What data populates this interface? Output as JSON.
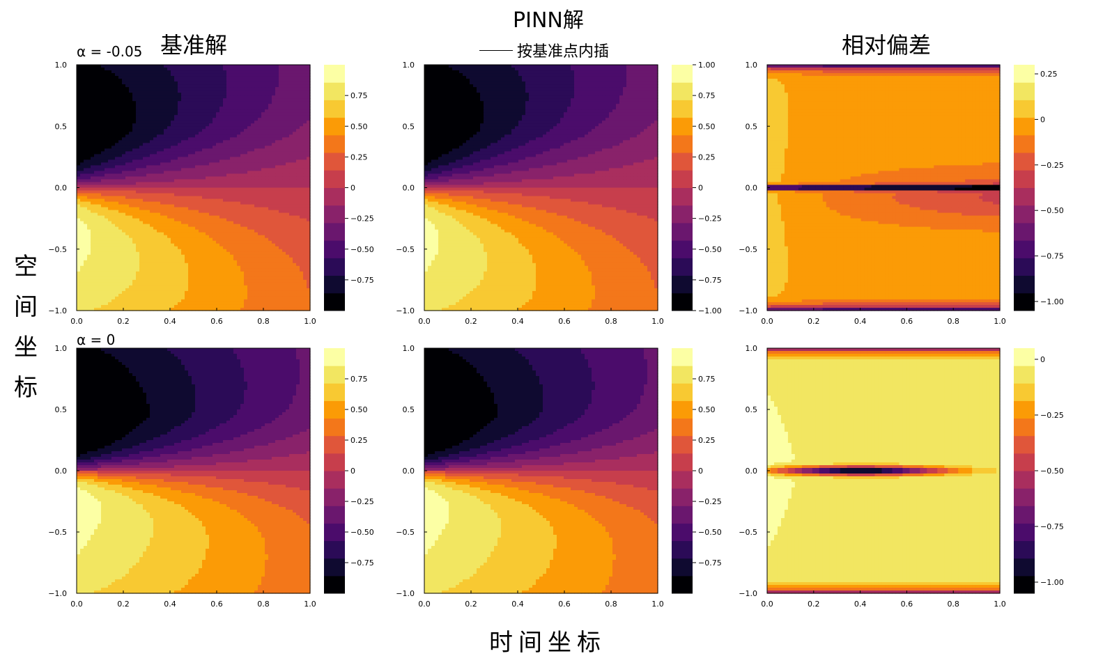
{
  "figure": {
    "title": "PINN解",
    "columns": [
      "基准解",
      "",
      "相对偏差"
    ],
    "note": "按基准点内插",
    "row_labels": [
      "α = -0.05",
      "α = 0"
    ],
    "y_label": "空间坐标",
    "x_label": "时间坐标",
    "colormap": [
      "#000004",
      "#0f0a30",
      "#2b0b57",
      "#4b0c6b",
      "#6a176e",
      "#89226a",
      "#a92e5e",
      "#c73e4c",
      "#e0563a",
      "#f3771a",
      "#fb9b06",
      "#f8c932",
      "#f2e661",
      "#fcffa4"
    ]
  },
  "chart_data": [
    {
      "type": "heatmap",
      "name": "ref",
      "row": 0,
      "col": 0,
      "alpha": -0.05,
      "x_ticks": [
        "0.0",
        "0.2",
        "0.4",
        "0.6",
        "0.8",
        "1.0"
      ],
      "y_ticks": [
        "1.0",
        "0.5",
        "0.0",
        "−0.5",
        "−1.0"
      ],
      "xlim": [
        0,
        1
      ],
      "ylim": [
        -1,
        1
      ],
      "clim": [
        -1,
        1
      ],
      "cbar_ticks": [
        [
          "0.75",
          0.75
        ],
        [
          "0.50",
          0.5
        ],
        [
          "0.25",
          0.25
        ],
        [
          "0",
          0
        ],
        [
          "−0.25",
          -0.25
        ],
        [
          "−0.50",
          -0.5
        ],
        [
          "−0.75",
          -0.75
        ]
      ]
    },
    {
      "type": "heatmap",
      "name": "pinn",
      "row": 0,
      "col": 1,
      "alpha": -0.05,
      "x_ticks": [
        "0.0",
        "0.2",
        "0.4",
        "0.6",
        "0.8",
        "1.0"
      ],
      "y_ticks": [
        "1.0",
        "0.5",
        "0.0",
        "−0.5",
        "−1.0"
      ],
      "xlim": [
        0,
        1
      ],
      "ylim": [
        -1,
        1
      ],
      "clim": [
        -1,
        1
      ],
      "cbar_ticks": [
        [
          "1.00",
          1
        ],
        [
          "0.75",
          0.75
        ],
        [
          "0.50",
          0.5
        ],
        [
          "0.25",
          0.25
        ],
        [
          "0",
          0
        ],
        [
          "−0.25",
          -0.25
        ],
        [
          "−0.50",
          -0.5
        ],
        [
          "−0.75",
          -0.75
        ],
        [
          "−1.00",
          -1
        ]
      ]
    },
    {
      "type": "heatmap",
      "name": "diff",
      "row": 0,
      "col": 2,
      "alpha": -0.05,
      "x_ticks": [
        "0.0",
        "0.2",
        "0.4",
        "0.6",
        "0.8",
        "1.0"
      ],
      "y_ticks": [
        "1.0",
        "0.5",
        "0.0",
        "−0.5",
        "−1.0"
      ],
      "xlim": [
        0,
        1
      ],
      "ylim": [
        -1,
        1
      ],
      "clim": [
        -1.05,
        0.3
      ],
      "cbar_ticks": [
        [
          "0.25",
          0.25
        ],
        [
          "0",
          0
        ],
        [
          "−0.25",
          -0.25
        ],
        [
          "−0.50",
          -0.5
        ],
        [
          "−0.75",
          -0.75
        ],
        [
          "−1.00",
          -1
        ]
      ]
    },
    {
      "type": "heatmap",
      "name": "ref",
      "row": 1,
      "col": 0,
      "alpha": 0,
      "x_ticks": [
        "0.0",
        "0.2",
        "0.4",
        "0.6",
        "0.8",
        "1.0"
      ],
      "y_ticks": [
        "1.0",
        "0.5",
        "0.0",
        "−0.5",
        "−1.0"
      ],
      "xlim": [
        0,
        1
      ],
      "ylim": [
        -1,
        1
      ],
      "clim": [
        -1,
        1
      ],
      "cbar_ticks": [
        [
          "0.75",
          0.75
        ],
        [
          "0.50",
          0.5
        ],
        [
          "0.25",
          0.25
        ],
        [
          "0",
          0
        ],
        [
          "−0.25",
          -0.25
        ],
        [
          "−0.50",
          -0.5
        ],
        [
          "−0.75",
          -0.75
        ]
      ]
    },
    {
      "type": "heatmap",
      "name": "pinn",
      "row": 1,
      "col": 1,
      "alpha": 0,
      "x_ticks": [
        "0.0",
        "0.2",
        "0.4",
        "0.6",
        "0.8",
        "1.0"
      ],
      "y_ticks": [
        "1.0",
        "0.5",
        "0.0",
        "−0.5",
        "−1.0"
      ],
      "xlim": [
        0,
        1
      ],
      "ylim": [
        -1,
        1
      ],
      "clim": [
        -1,
        1
      ],
      "cbar_ticks": [
        [
          "0.75",
          0.75
        ],
        [
          "0.50",
          0.5
        ],
        [
          "0.25",
          0.25
        ],
        [
          "0",
          0
        ],
        [
          "−0.25",
          -0.25
        ],
        [
          "−0.50",
          -0.5
        ],
        [
          "−0.75",
          -0.75
        ]
      ]
    },
    {
      "type": "heatmap",
      "name": "diff",
      "row": 1,
      "col": 2,
      "alpha": 0,
      "x_ticks": [
        "0.0",
        "0.2",
        "0.4",
        "0.6",
        "0.8",
        "1.0"
      ],
      "y_ticks": [
        "1.0",
        "0.5",
        "0.0",
        "−0.5",
        "−1.0"
      ],
      "xlim": [
        0,
        1
      ],
      "ylim": [
        -1,
        1
      ],
      "clim": [
        -1.05,
        0.05
      ],
      "cbar_ticks": [
        [
          "0",
          0
        ],
        [
          "−0.25",
          -0.25
        ],
        [
          "−0.50",
          -0.5
        ],
        [
          "−0.75",
          -0.75
        ],
        [
          "−1.00",
          -1
        ]
      ]
    }
  ]
}
